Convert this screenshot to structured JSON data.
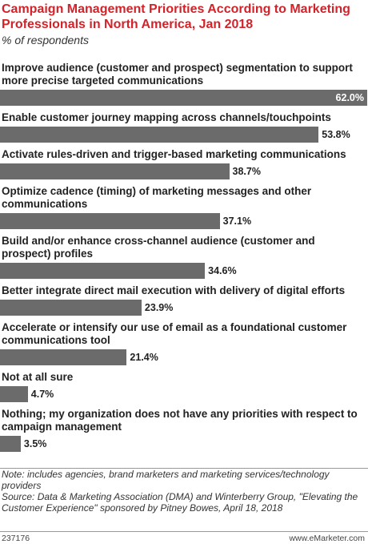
{
  "chart_data": {
    "type": "bar",
    "orientation": "horizontal",
    "title": "Campaign Management Priorities According to Marketing Professionals in North America, Jan 2018",
    "subtitle": "% of respondents",
    "categories": [
      "Improve audience (customer and prospect) segmentation to support more precise targeted communications",
      "Enable customer journey mapping across channels/touchpoints",
      "Activate rules-driven and trigger-based marketing communications",
      "Optimize cadence (timing) of marketing messages and other communications",
      "Build and/or enhance cross-channel audience (customer and prospect) profiles",
      "Better integrate direct mail execution with delivery of digital efforts",
      "Accelerate or intensify our use of email as a foundational customer communications tool",
      "Not at all sure",
      "Nothing; my organization does not have any priorities with respect to campaign management"
    ],
    "values": [
      62.0,
      53.8,
      38.7,
      37.1,
      34.6,
      23.9,
      21.4,
      4.7,
      3.5
    ],
    "value_labels": [
      "62.0%",
      "53.8%",
      "38.7%",
      "37.1%",
      "34.6%",
      "23.9%",
      "21.4%",
      "4.7%",
      "3.5%"
    ],
    "color": "#6b6b6b",
    "note": "Note: includes agencies, brand marketers and marketing services/technology providers",
    "source": "Source: Data & Marketing Association (DMA) and Winterberry Group, \"Elevating the Customer Experience\" sponsored by Pitney Bowes, April 18, 2018",
    "chart_id": "237176",
    "site": "www.eMarketer.com"
  }
}
